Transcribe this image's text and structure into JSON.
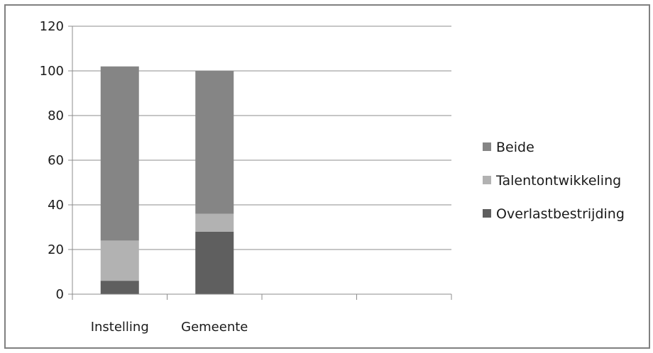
{
  "chart_data": {
    "type": "bar",
    "stacked": true,
    "categories": [
      "Instelling",
      "Gemeente"
    ],
    "empty_category_slots": 2,
    "series": [
      {
        "name": "Overlastbestrijding",
        "values": [
          6,
          28
        ],
        "color": "#5f5f5f"
      },
      {
        "name": "Talentontwikkeling",
        "values": [
          18,
          8
        ],
        "color": "#b2b2b2"
      },
      {
        "name": "Beide",
        "values": [
          78,
          64
        ],
        "color": "#858585"
      }
    ],
    "ylim": [
      0,
      120
    ],
    "yticks": [
      0,
      20,
      40,
      60,
      80,
      100,
      120
    ],
    "grid": true,
    "legend_position": "right",
    "legend_order": [
      "Beide",
      "Talentontwikkeling",
      "Overlastbestrijding"
    ]
  }
}
